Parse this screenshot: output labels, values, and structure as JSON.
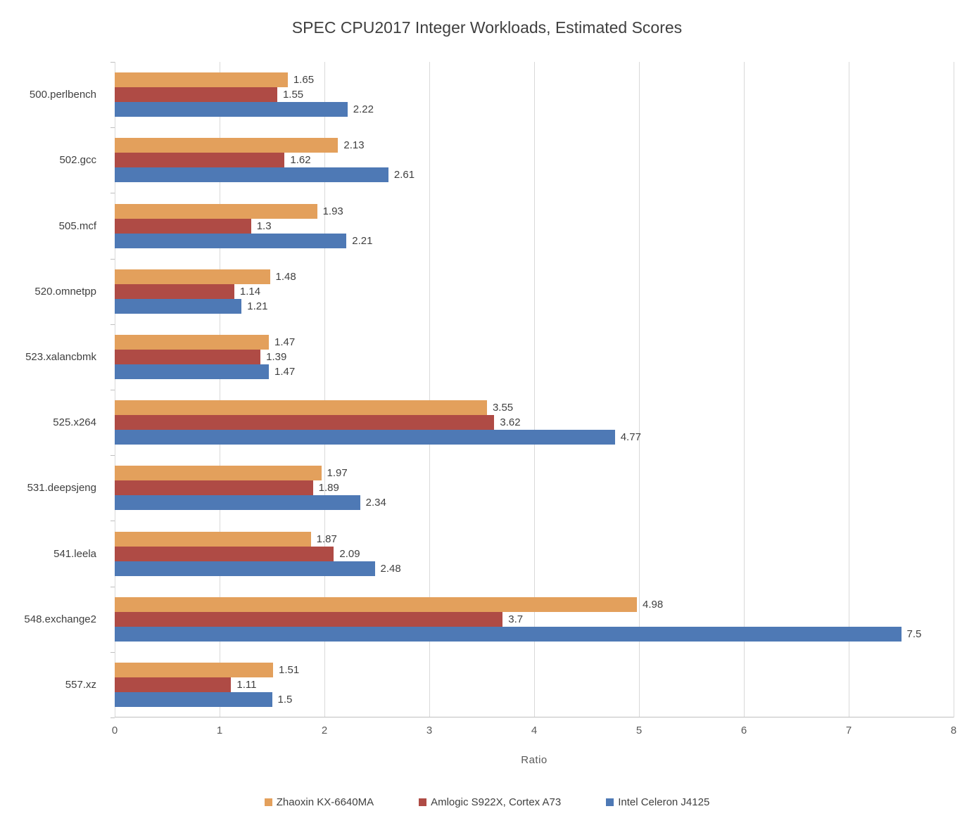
{
  "title": "SPEC CPU2017 Integer Workloads, Estimated Scores",
  "chart_data": {
    "type": "bar",
    "orientation": "horizontal",
    "title": "SPEC CPU2017 Integer Workloads, Estimated Scores",
    "xlabel": "Ratio",
    "xlim": [
      0,
      8
    ],
    "xticks": [
      0,
      1,
      2,
      3,
      4,
      5,
      6,
      7,
      8
    ],
    "grid": true,
    "legend_position": "bottom",
    "data_labels": true,
    "categories": [
      "500.perlbench",
      "502.gcc",
      "505.mcf",
      "520.omnetpp",
      "523.xalancbmk",
      "525.x264",
      "531.deepsjeng",
      "541.leela",
      "548.exchange2",
      "557.xz"
    ],
    "series": [
      {
        "name": "Zhaoxin KX-6640MA",
        "color": "#E3A05C",
        "values": [
          1.65,
          2.13,
          1.93,
          1.48,
          1.47,
          3.55,
          1.97,
          1.87,
          4.98,
          1.51
        ]
      },
      {
        "name": "Amlogic S922X, Cortex A73",
        "color": "#AF4B45",
        "values": [
          1.55,
          1.62,
          1.3,
          1.14,
          1.39,
          3.62,
          1.89,
          2.09,
          3.7,
          1.11
        ]
      },
      {
        "name": "Intel Celeron J4125",
        "color": "#4E79B5",
        "values": [
          2.22,
          2.61,
          2.21,
          1.21,
          1.47,
          4.77,
          2.34,
          2.48,
          7.5,
          1.5
        ]
      }
    ]
  },
  "colors": {
    "gridline": "#D9D9D9",
    "axis_line": "#BFBFBF",
    "title_text": "#3F3F3F",
    "label_text": "#404040",
    "tick_text": "#595959",
    "background": "#FFFFFF"
  }
}
